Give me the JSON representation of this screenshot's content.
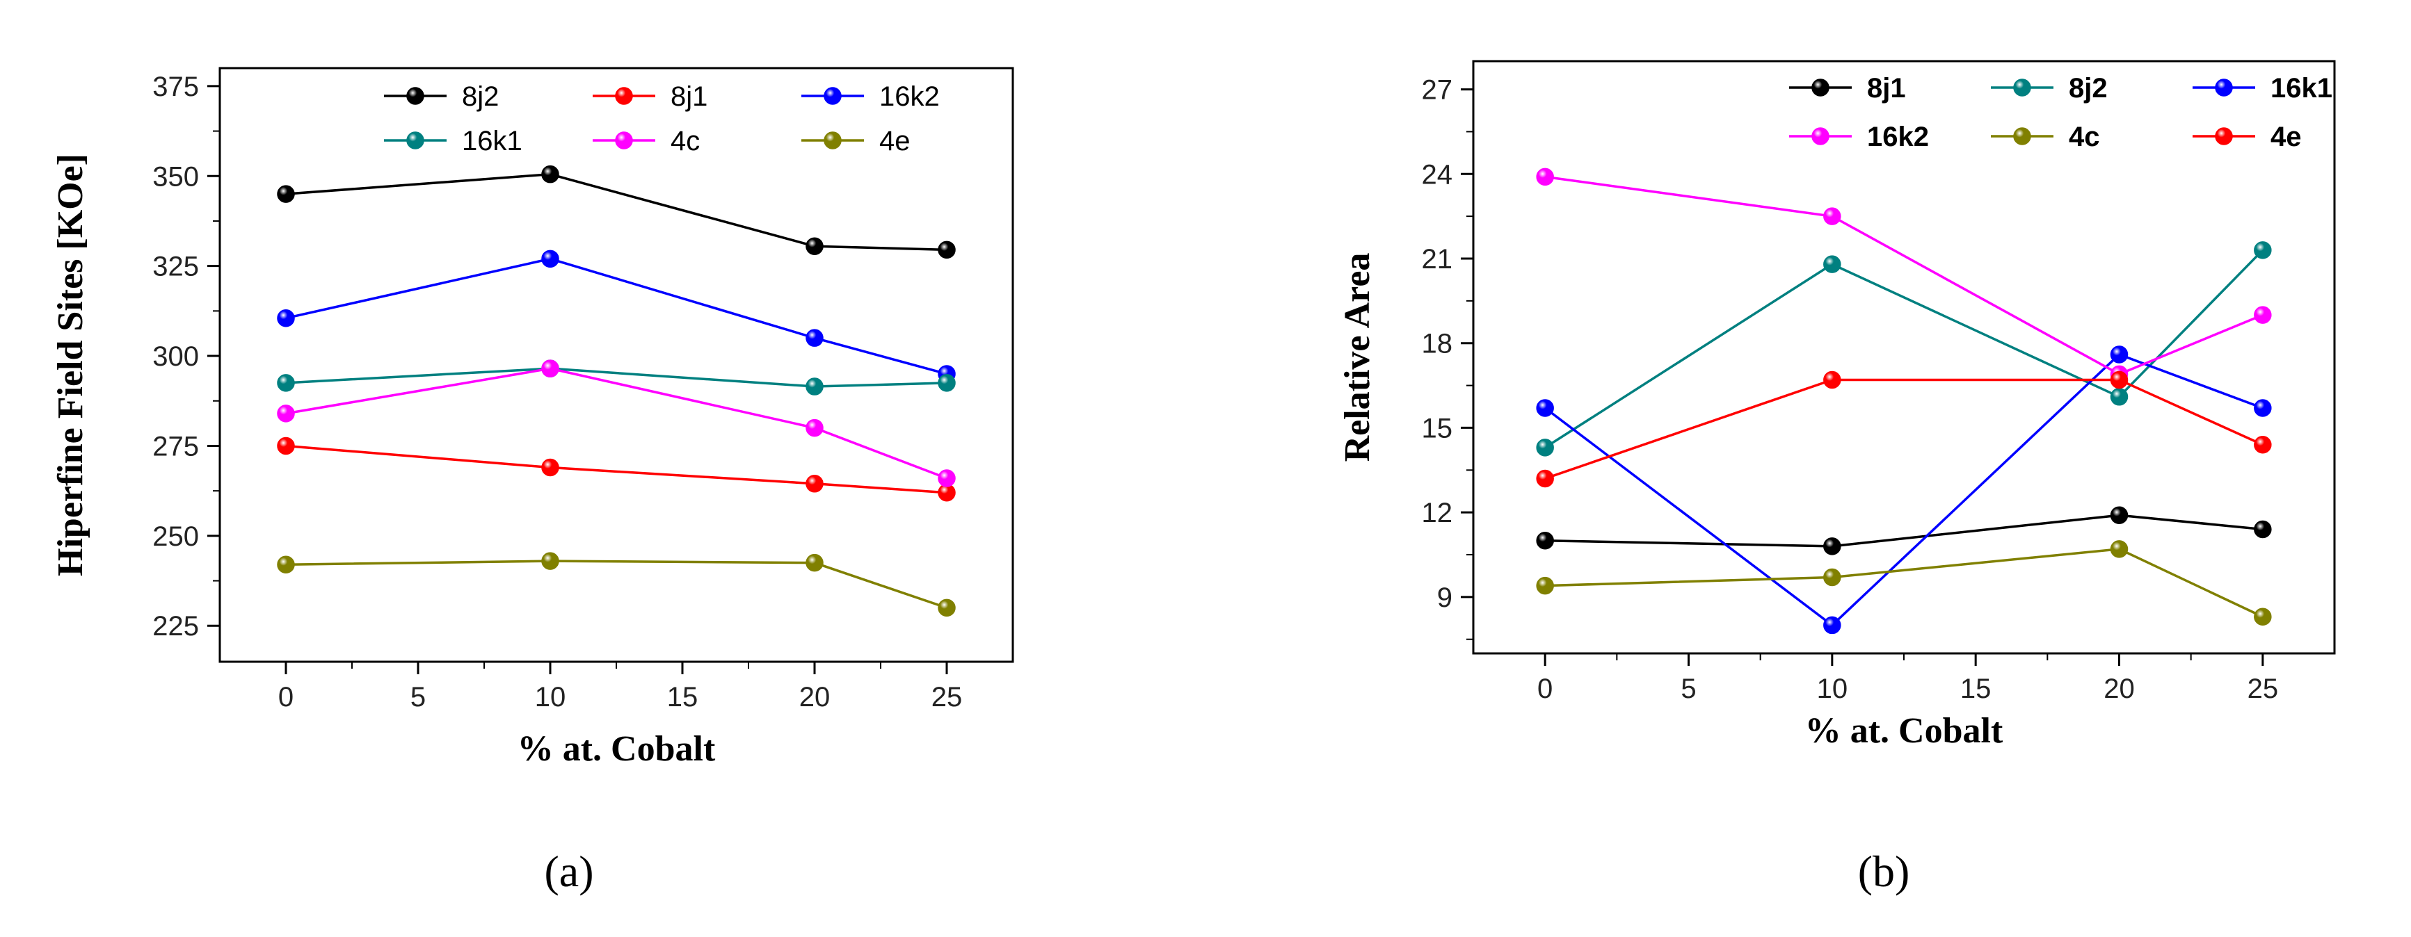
{
  "chart_data": [
    {
      "type": "line",
      "panel_label": "(a)",
      "title": "",
      "xlabel": "% at. Cobalt",
      "ylabel": "Hiperfine Field Sites [KOe]",
      "x": [
        0,
        10,
        20,
        25
      ],
      "xlim": [
        -2.5,
        27.5
      ],
      "ylim": [
        215,
        380
      ],
      "xticks": [
        0,
        5,
        10,
        15,
        20,
        25
      ],
      "xtick_labels": [
        "0",
        "5",
        "10",
        "15",
        "20",
        "25"
      ],
      "yticks": [
        225,
        250,
        275,
        300,
        325,
        350,
        375
      ],
      "ytick_labels": [
        "225",
        "250",
        "275",
        "300",
        "325",
        "350",
        "375"
      ],
      "legend_bold": false,
      "series": [
        {
          "name": "8j2",
          "color": "#000000",
          "values": [
            345,
            350.5,
            330.5,
            329.5
          ]
        },
        {
          "name": "8j1",
          "color": "#ff0000",
          "values": [
            275,
            269,
            264.5,
            262
          ]
        },
        {
          "name": "16k2",
          "color": "#0000ff",
          "values": [
            310.5,
            327,
            305,
            295
          ]
        },
        {
          "name": "16k1",
          "color": "#008080",
          "values": [
            292.5,
            296.5,
            291.5,
            292.5
          ]
        },
        {
          "name": "4c",
          "color": "#ff00ff",
          "values": [
            284,
            296.5,
            280,
            266
          ]
        },
        {
          "name": "4e",
          "color": "#808000",
          "values": [
            242,
            243,
            242.5,
            230
          ]
        }
      ]
    },
    {
      "type": "line",
      "panel_label": "(b)",
      "title": "",
      "xlabel": "% at. Cobalt",
      "ylabel": "Relative Area",
      "x": [
        0,
        10,
        20,
        25
      ],
      "xlim": [
        -2.5,
        27.5
      ],
      "ylim": [
        7,
        28
      ],
      "xticks": [
        0,
        5,
        10,
        15,
        20,
        25
      ],
      "xtick_labels": [
        "0",
        "5",
        "10",
        "15",
        "20",
        "25"
      ],
      "yticks": [
        9,
        12,
        15,
        18,
        21,
        24,
        27
      ],
      "ytick_labels": [
        "9",
        "12",
        "15",
        "18",
        "21",
        "24",
        "27"
      ],
      "legend_bold": true,
      "series": [
        {
          "name": "8j1",
          "color": "#000000",
          "values": [
            11,
            10.8,
            11.9,
            11.4
          ]
        },
        {
          "name": "8j2",
          "color": "#008080",
          "values": [
            14.3,
            20.8,
            16.1,
            21.3
          ]
        },
        {
          "name": "16k1",
          "color": "#0000ff",
          "values": [
            15.7,
            8,
            17.6,
            15.7
          ]
        },
        {
          "name": "16k2",
          "color": "#ff00ff",
          "values": [
            23.9,
            22.5,
            16.9,
            19
          ]
        },
        {
          "name": "4c",
          "color": "#808000",
          "values": [
            9.4,
            9.7,
            10.7,
            8.3
          ]
        },
        {
          "name": "4e",
          "color": "#ff0000",
          "values": [
            13.2,
            16.7,
            16.7,
            14.4
          ]
        }
      ]
    }
  ]
}
